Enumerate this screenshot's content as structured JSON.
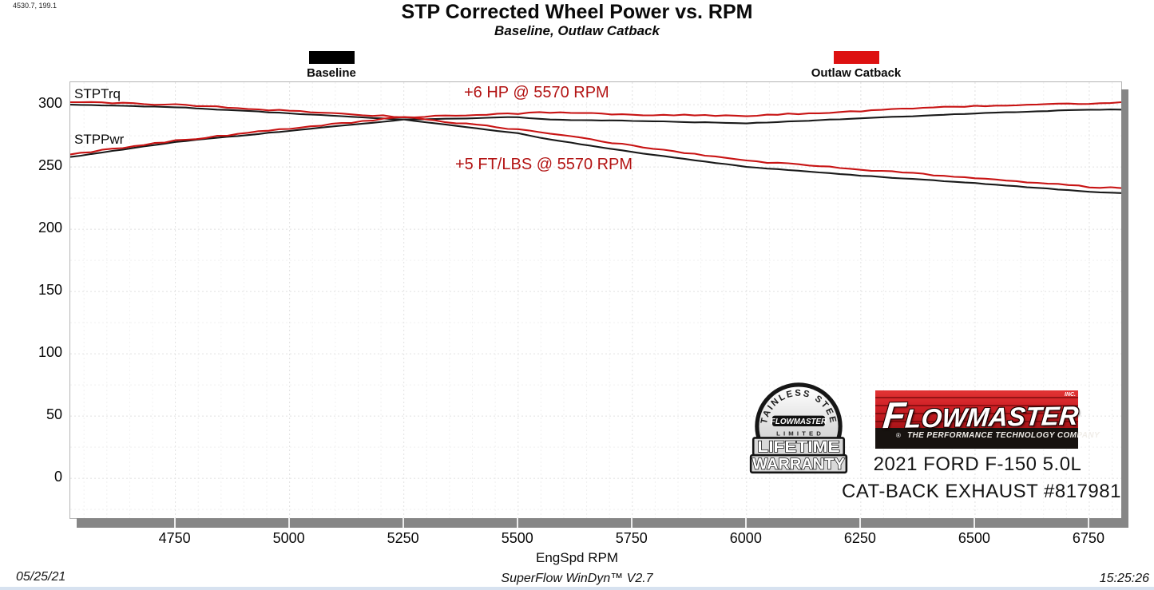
{
  "cursor_readout": "4530.7, 199.1",
  "title": "STP Corrected Wheel Power vs. RPM",
  "subtitle": "Baseline, Outlaw Catback",
  "legend": [
    {
      "label": "Baseline",
      "color": "#000000"
    },
    {
      "label": "Outlaw Catback",
      "color": "#dd1111"
    }
  ],
  "curve_labels": {
    "torque": "STPTrq",
    "power": "STPPwr"
  },
  "axis": {
    "xlabel": "EngSpd  RPM"
  },
  "footer": {
    "date": "05/25/21",
    "software": "SuperFlow WinDyn™ V2.7",
    "time": "15:25:26"
  },
  "vehicle": {
    "line1": "2021 FORD F-150 5.0L",
    "line2": "CAT-BACK EXHAUST #817981"
  },
  "logo": {
    "brand": "FLOWMASTER",
    "brand_first_letter": "F",
    "brand_rest": "LOWMASTER",
    "inc": "INC.",
    "registered": "®",
    "tagline": "THE PERFORMANCE TECHNOLOGY COMPANY"
  },
  "badge": {
    "arc_text": "STAINLESS STEEL",
    "brand": "FLOWMASTER",
    "limited": "LIMITED",
    "line1": "LIFETIME",
    "line2": "WARRANTY"
  },
  "chart_data": {
    "type": "line",
    "title": "STP Corrected Wheel Power vs. RPM",
    "subtitle": "Baseline, Outlaw Catback",
    "xlabel": "EngSpd RPM",
    "ylabel": "",
    "x_range": [
      4520,
      6820
    ],
    "y_range": [
      -32,
      318
    ],
    "x_ticks": [
      4750,
      5000,
      5250,
      5500,
      5750,
      6000,
      6250,
      6500,
      6750
    ],
    "y_ticks": [
      0,
      50,
      100,
      150,
      200,
      250,
      300
    ],
    "grid": "dashed-light",
    "legend_position": "top",
    "x": [
      4520,
      4750,
      5000,
      5250,
      5500,
      5570,
      5750,
      6000,
      6250,
      6500,
      6750,
      6820
    ],
    "series": [
      {
        "name": "Baseline STPPwr",
        "run": "Baseline",
        "channel": "STPPwr",
        "color": "#1a1a1a",
        "values": [
          258,
          270,
          279,
          288,
          290,
          288,
          287,
          285,
          289,
          293,
          296,
          296
        ]
      },
      {
        "name": "Baseline STPTrq",
        "run": "Baseline",
        "channel": "STPTrq",
        "color": "#1a1a1a",
        "values": [
          300,
          298,
          293,
          288,
          277,
          272,
          262,
          250,
          243,
          237,
          230,
          229
        ]
      },
      {
        "name": "Outlaw Catback STPPwr",
        "run": "Outlaw Catback",
        "channel": "STPPwr",
        "color": "#c81414",
        "values": [
          260,
          271,
          281,
          290,
          293,
          294,
          292,
          291,
          295,
          299,
          301,
          302
        ]
      },
      {
        "name": "Outlaw Catback STPTrq",
        "run": "Outlaw Catback",
        "channel": "STPTrq",
        "color": "#c81414",
        "values": [
          302,
          300,
          295,
          290,
          280,
          277,
          267,
          255,
          248,
          241,
          234,
          233
        ]
      }
    ],
    "annotations": [
      {
        "text": "+6 HP @ 5570 RPM",
        "x": 5570,
        "y": 302,
        "color": "#b31414"
      },
      {
        "text": "+5 FT/LBS @ 5570 RPM",
        "x": 5570,
        "y": 245,
        "color": "#b31414"
      }
    ]
  }
}
